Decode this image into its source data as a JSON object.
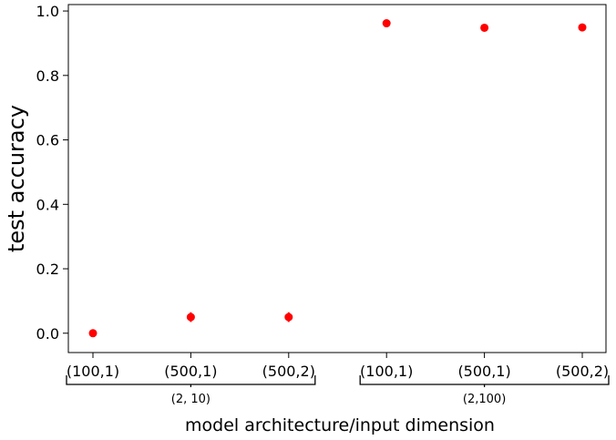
{
  "chart_data": {
    "type": "scatter",
    "title": "",
    "xlabel": "model architecture/input dimension",
    "ylabel": "test accuracy",
    "categories": [
      "(100,1)",
      "(500,1)",
      "(500,2)",
      "(100,1)",
      "(500,1)",
      "(500,2)"
    ],
    "series": [
      {
        "values": [
          0.0,
          0.05,
          0.05,
          0.962,
          0.948,
          0.949
        ],
        "errors": [
          0.0,
          0.015,
          0.015,
          0.0,
          0.0,
          0.0
        ],
        "color": "#ff0000"
      }
    ],
    "groups": [
      {
        "label": "(2, 10)",
        "categories": [
          0,
          1,
          2
        ]
      },
      {
        "label": "(2,100)",
        "categories": [
          3,
          4,
          5
        ]
      }
    ],
    "ylim": [
      -0.06,
      1.02
    ],
    "yticks": [
      "0.0",
      "0.2",
      "0.4",
      "0.6",
      "0.8",
      "1.0"
    ],
    "grid": false,
    "legend": "none"
  }
}
